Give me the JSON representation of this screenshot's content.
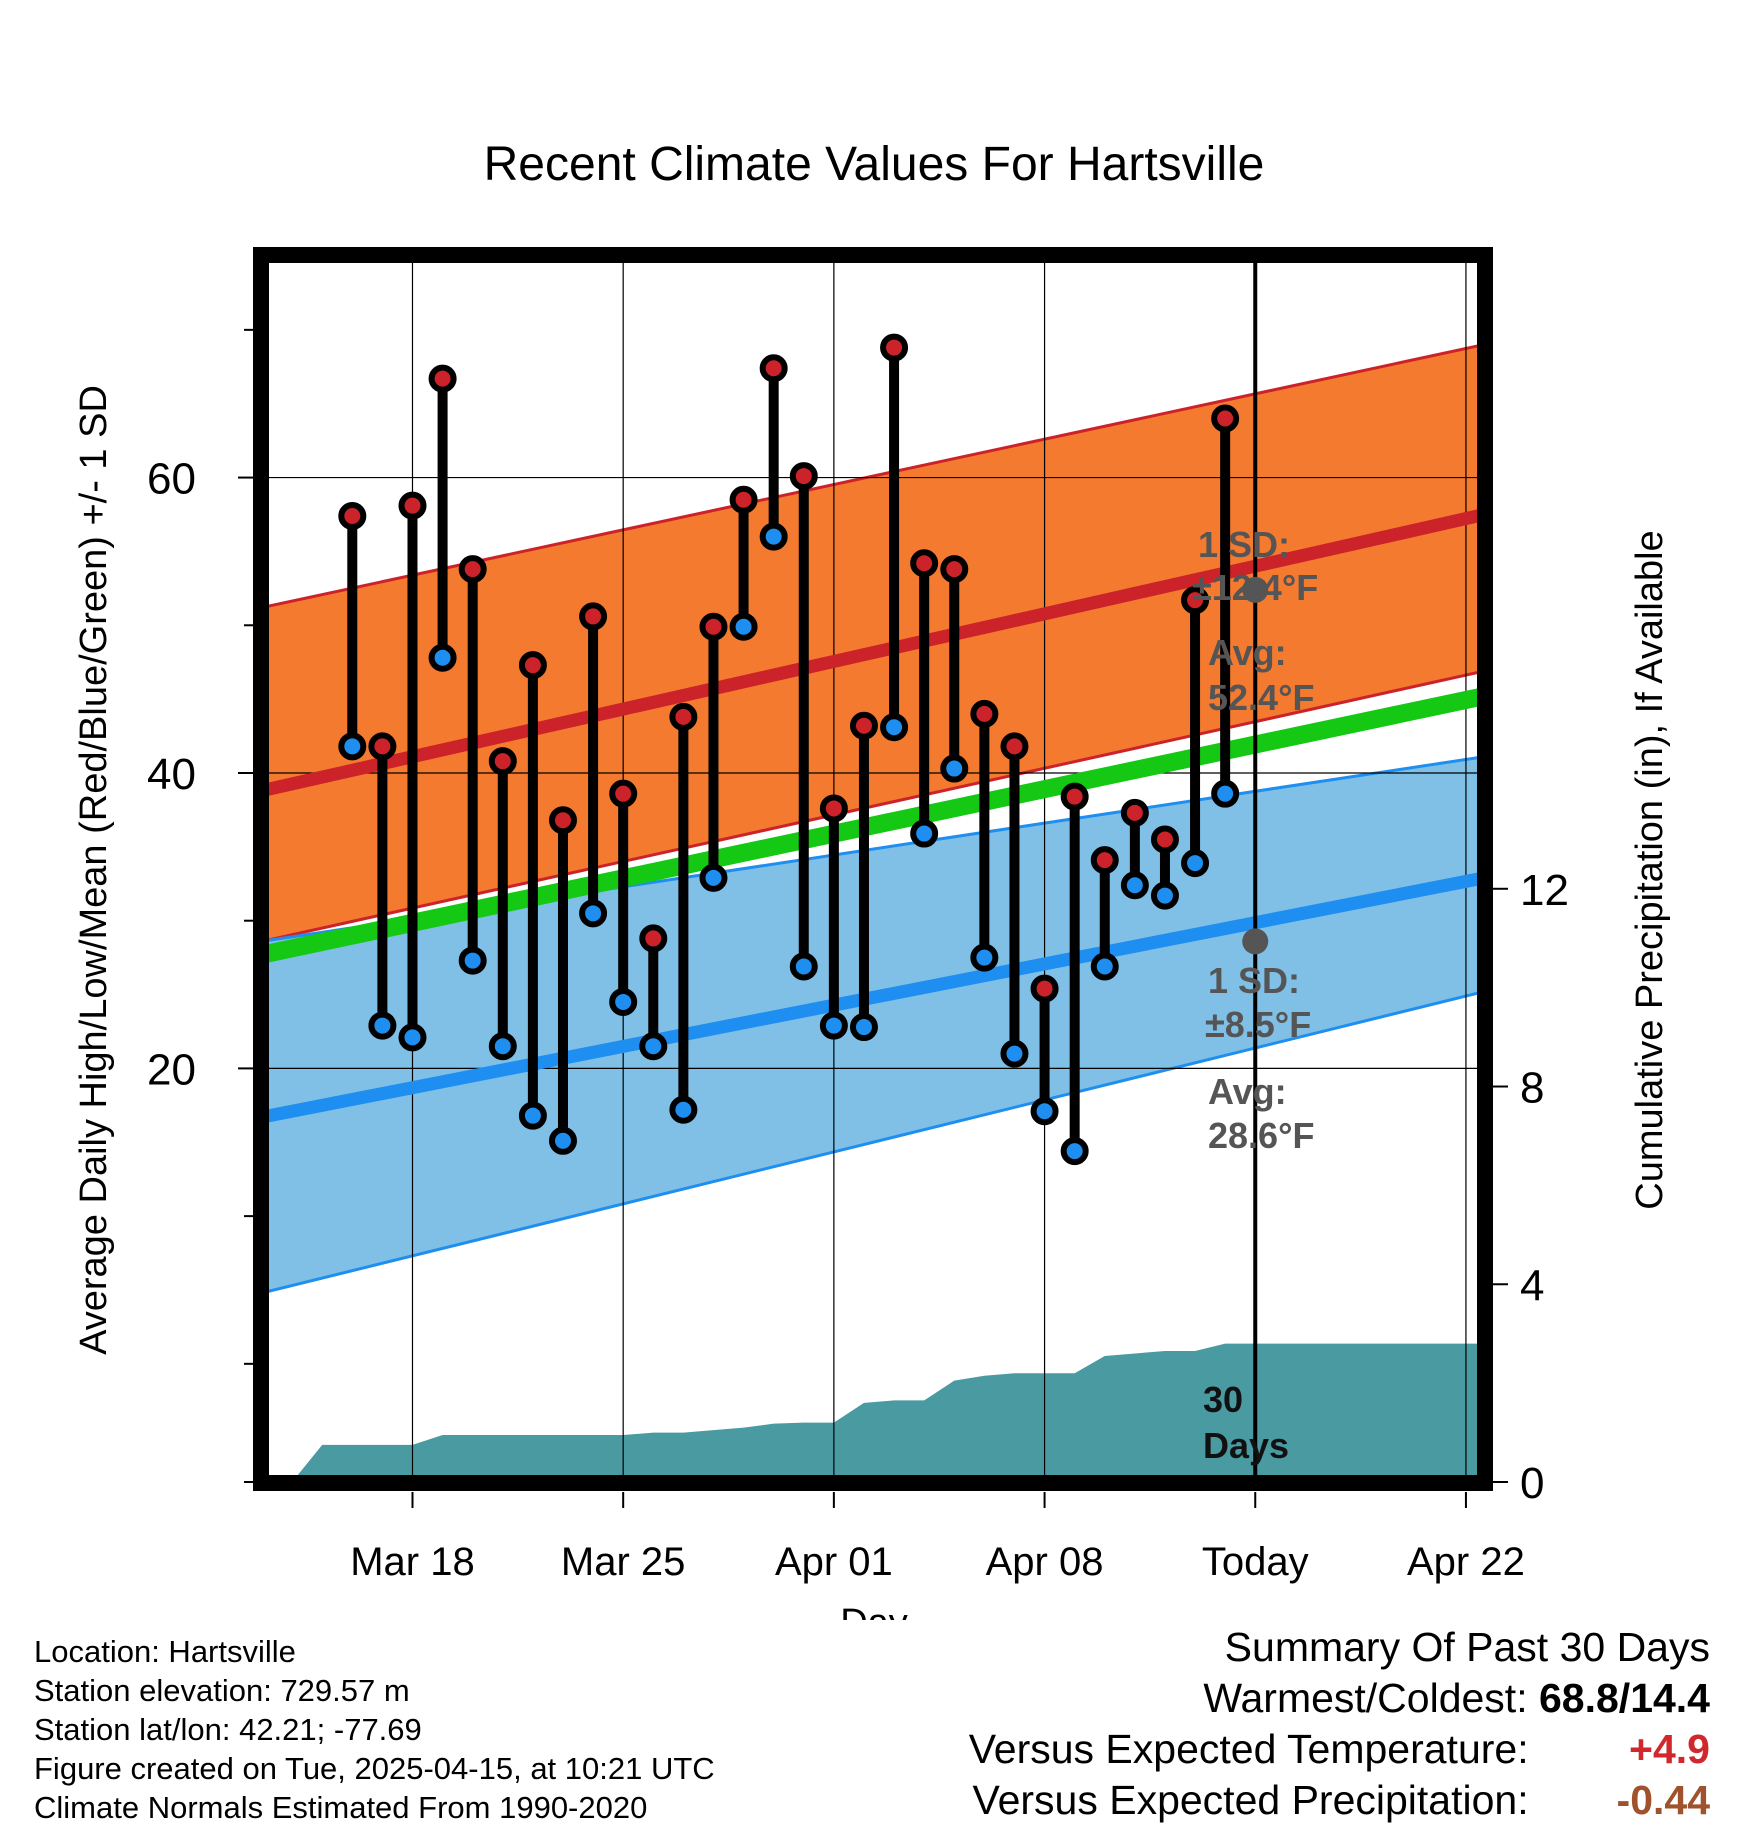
{
  "chart_data": {
    "type": "climate-range",
    "title": "Recent Climate Values For Hartsville",
    "xlabel": "Day",
    "ylabel_left": "Average Daily High/Low/Mean (Red/Blue/Green) +/- 1 SD",
    "ylabel_right": "Cumulative Precipitation (in), If Available",
    "x_range_days": [
      -33,
      7.6
    ],
    "ylim_left": [
      -8,
      75
    ],
    "ylim_right": [
      0,
      24.8
    ],
    "left_ticks": [
      20,
      40,
      60
    ],
    "left_tick_labels": [
      "20",
      "40",
      "60"
    ],
    "right_ticks": [
      0,
      4,
      8,
      12
    ],
    "right_tick_labels": [
      "0",
      "4",
      "8",
      "12"
    ],
    "x_ticks": [
      {
        "day": -28,
        "label": "Mar 18"
      },
      {
        "day": -21,
        "label": "Mar 25"
      },
      {
        "day": -14,
        "label": "Apr 01"
      },
      {
        "day": -7,
        "label": "Apr 08"
      },
      {
        "day": 0,
        "label": "Today"
      },
      {
        "day": 7,
        "label": "Apr 22"
      }
    ],
    "normals": {
      "high_mean": {
        "start": 38.8,
        "end": 57.5
      },
      "high_upper": {
        "start": 51.2,
        "end": 69.0
      },
      "high_lower": {
        "start": 28.6,
        "end": 46.9
      },
      "low_mean": {
        "start": 16.7,
        "end": 32.9
      },
      "low_upper": {
        "start": 28.6,
        "end": 41.1
      },
      "low_lower": {
        "start": 4.8,
        "end": 25.2
      },
      "daily_mean": {
        "start": 27.7,
        "end": 45.2
      }
    },
    "series": [
      {
        "name": "High",
        "color": "#cc2229",
        "values": [
          57.4,
          41.8,
          58.1,
          66.7,
          53.8,
          40.8,
          47.3,
          36.8,
          50.6,
          38.6,
          28.8,
          43.8,
          49.9,
          58.5,
          67.4,
          60.1,
          37.6,
          43.2,
          68.8,
          54.2,
          53.8,
          44.0,
          41.8,
          25.4,
          38.4,
          34.1,
          37.3,
          35.5,
          51.7,
          64.0
        ]
      },
      {
        "name": "Low",
        "color": "#1e8ff0",
        "values": [
          41.8,
          22.9,
          22.1,
          47.8,
          27.3,
          21.5,
          16.8,
          15.1,
          30.5,
          24.5,
          21.5,
          17.2,
          32.9,
          49.9,
          56.0,
          26.9,
          22.9,
          22.8,
          43.1,
          35.9,
          40.3,
          27.5,
          21.0,
          17.1,
          14.4,
          26.9,
          32.4,
          31.7,
          33.9,
          38.6
        ]
      }
    ],
    "precipitation": {
      "days": [
        -32,
        -31,
        -30,
        -29,
        -28,
        -27,
        -26,
        -25,
        -24,
        -23,
        -22,
        -21,
        -20,
        -19,
        -18,
        -17,
        -16,
        -15,
        -14,
        -13,
        -12,
        -11,
        -10,
        -9,
        -8,
        -7,
        -6,
        -5,
        -4,
        -3,
        -2,
        -1,
        0,
        7
      ],
      "values": [
        0.0,
        0.75,
        0.75,
        0.75,
        0.75,
        0.95,
        0.95,
        0.95,
        0.95,
        0.95,
        0.95,
        0.95,
        1.0,
        1.0,
        1.05,
        1.1,
        1.18,
        1.2,
        1.2,
        1.6,
        1.65,
        1.65,
        2.05,
        2.15,
        2.2,
        2.2,
        2.2,
        2.55,
        2.6,
        2.65,
        2.65,
        2.8,
        2.8,
        2.8
      ]
    },
    "today_annotations": {
      "high_sd": "1 SD:",
      "high_sd_value": "±12.4°F",
      "high_avg": "Avg:",
      "high_avg_value": "52.4°F",
      "high_avg_point": 52.4,
      "low_sd": "1 SD:",
      "low_sd_value": "±8.5°F",
      "low_avg": "Avg:",
      "low_avg_value": "28.6°F",
      "low_avg_point": 28.6,
      "period_number": "30",
      "period_unit": "Days"
    },
    "colors": {
      "high_band": "#f47a30",
      "high_line": "#cc2229",
      "low_band": "#80c0e6",
      "low_line": "#1e8ff0",
      "mean_line": "#14c814",
      "precip": "#4a9aa2",
      "annotation": "#555555"
    }
  },
  "footer": {
    "location": "Location: Hartsville",
    "elevation": "Station elevation: 729.57 m",
    "latlon": "Station lat/lon: 42.21; -77.69",
    "created": "Figure created on Tue, 2025-04-15, at 10:21 UTC",
    "normals": "Climate Normals Estimated From 1990-2020"
  },
  "summary": {
    "title": "Summary Of Past 30 Days",
    "warmest_label": "Warmest/Coldest:",
    "warmest_value": "68.8/14.4",
    "temp_label": "Versus Expected Temperature:",
    "temp_value": "+4.9",
    "precip_label": "Versus Expected Precipitation:",
    "precip_value": "-0.44"
  }
}
